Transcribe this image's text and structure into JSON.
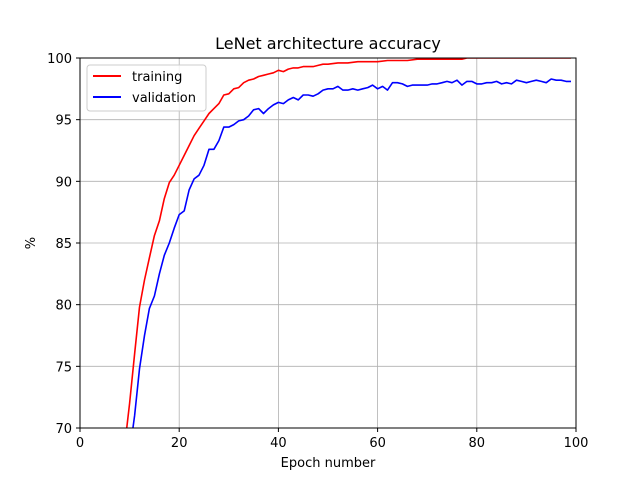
{
  "chart_data": {
    "type": "line",
    "title": "LeNet architecture accuracy",
    "xlabel": "Epoch number",
    "ylabel": "%",
    "xlim": [
      0,
      100
    ],
    "ylim": [
      70,
      100
    ],
    "xticks": [
      0,
      20,
      40,
      60,
      80,
      100
    ],
    "yticks": [
      70,
      75,
      80,
      85,
      90,
      95,
      100
    ],
    "xtick_labels": [
      "0",
      "20",
      "40",
      "60",
      "80",
      "100"
    ],
    "ytick_labels": [
      "70",
      "75",
      "80",
      "85",
      "90",
      "95",
      "100"
    ],
    "grid": true,
    "legend_position": "top-left",
    "series": [
      {
        "name": "training",
        "color": "#ff0000",
        "x": [
          9,
          10,
          11,
          12,
          13,
          14,
          15,
          16,
          17,
          18,
          19,
          20,
          21,
          22,
          23,
          24,
          25,
          26,
          27,
          28,
          29,
          30,
          31,
          32,
          33,
          34,
          35,
          36,
          37,
          38,
          39,
          40,
          41,
          42,
          43,
          44,
          45,
          46,
          47,
          48,
          49,
          50,
          52,
          54,
          56,
          58,
          60,
          62,
          64,
          66,
          68,
          70,
          72,
          74,
          76,
          77,
          78,
          80,
          82,
          84,
          86,
          88,
          90,
          92,
          94,
          96,
          98,
          99
        ],
        "y": [
          68.5,
          72.0,
          76.0,
          79.8,
          82.0,
          83.8,
          85.6,
          86.8,
          88.6,
          89.9,
          90.5,
          91.3,
          92.1,
          92.9,
          93.7,
          94.3,
          94.9,
          95.5,
          95.9,
          96.3,
          97.0,
          97.1,
          97.5,
          97.6,
          98.0,
          98.2,
          98.3,
          98.5,
          98.6,
          98.7,
          98.8,
          99.0,
          98.9,
          99.1,
          99.2,
          99.2,
          99.3,
          99.3,
          99.3,
          99.4,
          99.5,
          99.5,
          99.6,
          99.6,
          99.7,
          99.7,
          99.7,
          99.8,
          99.8,
          99.8,
          99.9,
          99.9,
          99.9,
          99.9,
          99.9,
          99.9,
          100.0,
          100.0,
          100.0,
          100.0,
          100.0,
          100.0,
          100.0,
          100.0,
          100.0,
          100.0,
          100.0,
          100.0
        ]
      },
      {
        "name": "validation",
        "color": "#0000ff",
        "x": [
          10,
          11,
          12,
          13,
          14,
          15,
          16,
          17,
          18,
          19,
          20,
          21,
          22,
          23,
          24,
          25,
          26,
          27,
          28,
          29,
          30,
          31,
          32,
          33,
          34,
          35,
          36,
          37,
          38,
          39,
          40,
          41,
          42,
          43,
          44,
          45,
          46,
          47,
          48,
          49,
          50,
          51,
          52,
          53,
          54,
          55,
          56,
          57,
          58,
          59,
          60,
          61,
          62,
          63,
          64,
          65,
          66,
          67,
          68,
          69,
          70,
          71,
          72,
          73,
          74,
          75,
          76,
          77,
          78,
          79,
          80,
          81,
          82,
          83,
          84,
          85,
          86,
          87,
          88,
          89,
          90,
          91,
          92,
          93,
          94,
          95,
          96,
          97,
          98,
          99
        ],
        "y": [
          68.0,
          71.0,
          74.8,
          77.5,
          79.7,
          80.7,
          82.5,
          84.0,
          85.0,
          86.2,
          87.3,
          87.6,
          89.3,
          90.2,
          90.5,
          91.3,
          92.6,
          92.6,
          93.3,
          94.4,
          94.4,
          94.6,
          94.9,
          95.0,
          95.3,
          95.8,
          95.9,
          95.5,
          95.9,
          96.2,
          96.4,
          96.3,
          96.6,
          96.8,
          96.6,
          97.0,
          97.0,
          96.9,
          97.1,
          97.4,
          97.5,
          97.5,
          97.7,
          97.4,
          97.4,
          97.5,
          97.4,
          97.5,
          97.6,
          97.8,
          97.5,
          97.7,
          97.4,
          98.0,
          98.0,
          97.9,
          97.7,
          97.8,
          97.8,
          97.8,
          97.8,
          97.9,
          97.9,
          98.0,
          98.1,
          98.0,
          98.2,
          97.8,
          98.1,
          98.1,
          97.9,
          97.9,
          98.0,
          98.0,
          98.1,
          97.9,
          98.0,
          97.9,
          98.2,
          98.1,
          98.0,
          98.1,
          98.2,
          98.1,
          98.0,
          98.3,
          98.2,
          98.2,
          98.1,
          98.1
        ]
      }
    ]
  }
}
